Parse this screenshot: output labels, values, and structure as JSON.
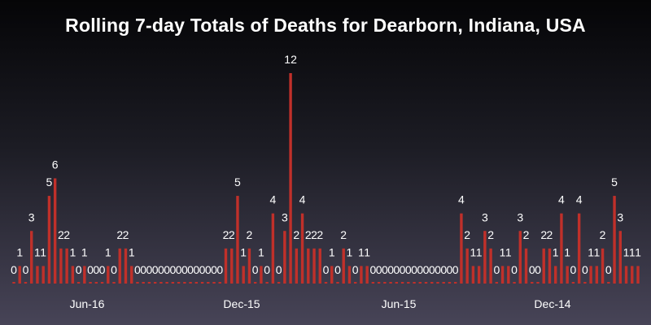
{
  "chart_data": {
    "type": "bar",
    "title": "Rolling 7-day Totals of Deaths for Dearborn, Indiana, USA",
    "xlabel": "",
    "ylabel": "",
    "ylim": [
      0,
      12
    ],
    "grid": false,
    "bar_color": "#c0302a",
    "x_tick_labels": [
      "Jun-16",
      "Dec-15",
      "Jun-15",
      "Dec-14"
    ],
    "values": [
      0,
      1,
      0,
      3,
      1,
      1,
      5,
      6,
      2,
      2,
      1,
      0,
      1,
      0,
      0,
      0,
      1,
      0,
      2,
      2,
      1,
      0,
      0,
      0,
      0,
      0,
      0,
      0,
      0,
      0,
      0,
      0,
      0,
      0,
      0,
      0,
      2,
      2,
      5,
      1,
      2,
      0,
      1,
      0,
      4,
      0,
      3,
      12,
      2,
      4,
      2,
      2,
      2,
      0,
      1,
      0,
      2,
      1,
      0,
      1,
      1,
      0,
      0,
      0,
      0,
      0,
      0,
      0,
      0,
      0,
      0,
      0,
      0,
      0,
      0,
      0,
      4,
      2,
      1,
      1,
      3,
      2,
      0,
      1,
      1,
      0,
      3,
      2,
      0,
      0,
      2,
      2,
      1,
      4,
      1,
      0,
      4,
      0,
      1,
      1,
      2,
      0,
      5,
      3,
      1,
      1,
      1
    ]
  }
}
